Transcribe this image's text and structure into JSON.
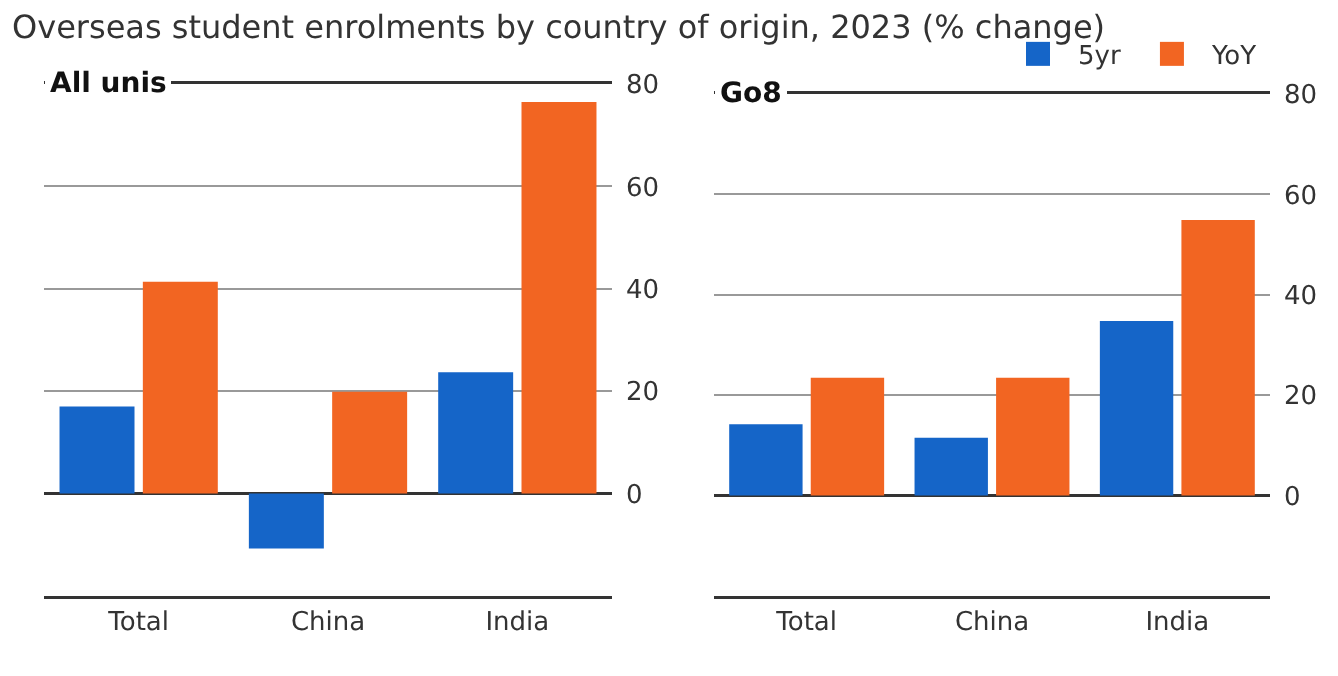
{
  "chart_data": [
    {
      "type": "bar",
      "title": "Overseas student enrolments by country of origin, 2023 (% change)",
      "subtitle": "All unis",
      "categories": [
        "Total",
        "China",
        "India"
      ],
      "series": [
        {
          "color": "#1565c8",
          "values": [
            17,
            -10.7,
            23.7
          ]
        },
        {
          "color": "#f26522",
          "values": [
            41.4,
            19.9,
            76.5
          ]
        }
      ],
      "ylim": [
        -20,
        80
      ],
      "yticks": [
        0,
        20,
        40,
        60,
        80
      ],
      "grid": "y",
      "legend": false
    },
    {
      "type": "bar",
      "subtitle": "Go8",
      "categories": [
        "Total",
        "China",
        "India"
      ],
      "series": [
        {
          "name": "5yr",
          "color": "#1565c8",
          "values": [
            14.2,
            11.5,
            34.8
          ]
        },
        {
          "name": "YoY",
          "color": "#f26522",
          "values": [
            23.5,
            23.5,
            54.9
          ]
        }
      ],
      "ylim": [
        -20,
        80
      ],
      "yticks": [
        0,
        20,
        40,
        60,
        80
      ],
      "grid": "y",
      "legend": "top right"
    }
  ]
}
